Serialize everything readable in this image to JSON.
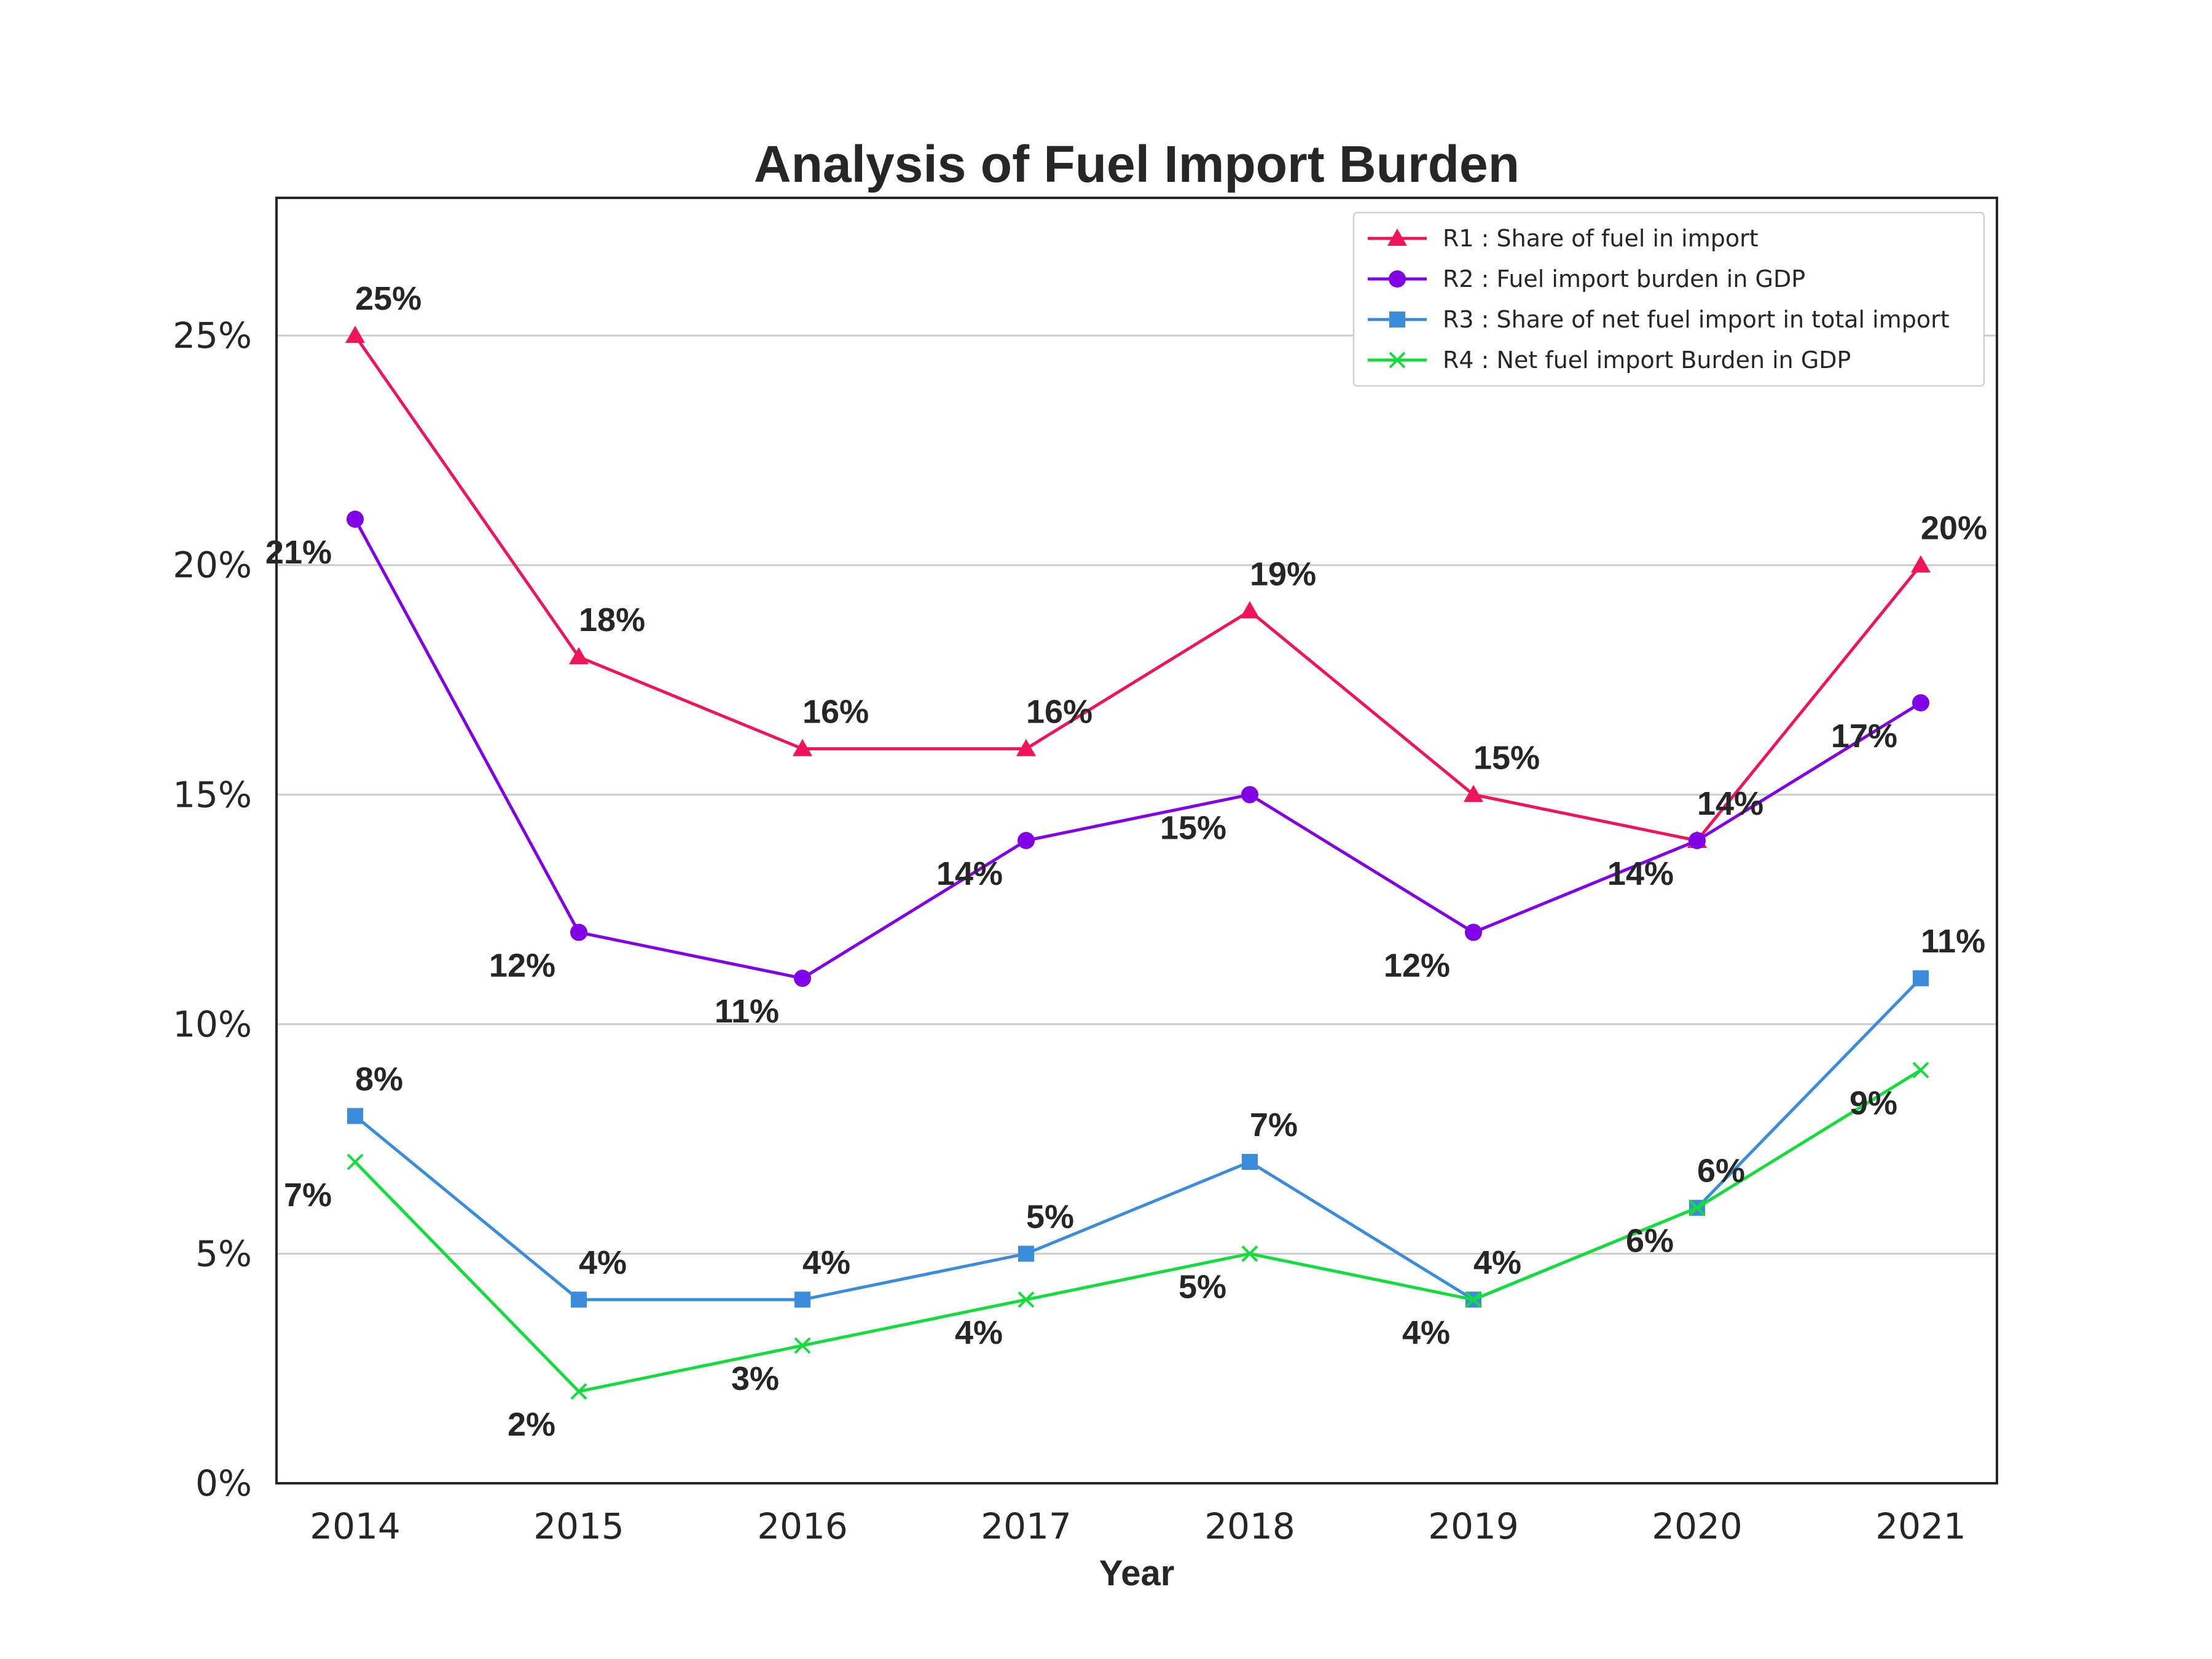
{
  "chart_data": {
    "type": "line",
    "title": "Analysis of Fuel Import Burden",
    "xlabel": "Year",
    "ylabel": "",
    "categories": [
      "2014",
      "2015",
      "2016",
      "2017",
      "2018",
      "2019",
      "2020",
      "2021"
    ],
    "ylim": [
      0,
      28
    ],
    "yticks": [
      0,
      5,
      10,
      15,
      20,
      25
    ],
    "ytick_labels": [
      "0%",
      "5%",
      "10%",
      "15%",
      "20%",
      "25%"
    ],
    "grid": "horizontal",
    "legend_position": "top-right",
    "series": [
      {
        "name": "R1 : Share of fuel in import",
        "color": "#f0145a",
        "marker": "triangle",
        "label_placement": "above",
        "values": [
          25,
          18,
          16,
          16,
          19,
          15,
          14,
          20
        ],
        "labels": [
          "25%",
          "18%",
          "16%",
          "16%",
          "19%",
          "15%",
          "14%",
          "20%"
        ]
      },
      {
        "name": "R2 : Fuel import burden in GDP",
        "color": "#8200e6",
        "marker": "circle",
        "label_placement": "below",
        "values": [
          21,
          12,
          11,
          14,
          15,
          12,
          14,
          17
        ],
        "labels": [
          "21%",
          "12%",
          "11%",
          "14%",
          "15%",
          "12%",
          "14%",
          "17%"
        ]
      },
      {
        "name": "R3 : Share of net fuel import in total import",
        "color": "#3c8cdc",
        "marker": "square",
        "label_placement": "above",
        "values": [
          8,
          4,
          4,
          5,
          7,
          4,
          6,
          11
        ],
        "labels": [
          "8%",
          "4%",
          "4%",
          "5%",
          "7%",
          "4%",
          "6%",
          "11%"
        ]
      },
      {
        "name": "R4 : Net fuel import Burden in GDP",
        "color": "#14dc3c",
        "marker": "x",
        "label_placement": "below",
        "values": [
          7,
          2,
          3,
          4,
          5,
          4,
          6,
          9
        ],
        "labels": [
          "7%",
          "2%",
          "3%",
          "4%",
          "5%",
          "4%",
          "6%",
          "9%"
        ]
      }
    ]
  }
}
